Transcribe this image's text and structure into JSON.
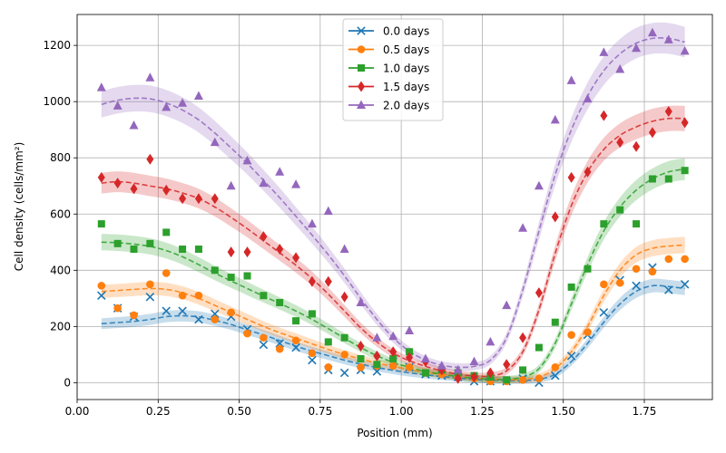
{
  "chart_data": {
    "type": "line",
    "title": "",
    "xlabel": "Position (mm)",
    "ylabel": "Cell density (cells/mm²)",
    "xlim": [
      0.0,
      1.96
    ],
    "ylim": [
      -60,
      1310
    ],
    "xticks": [
      0.0,
      0.25,
      0.5,
      0.75,
      1.0,
      1.25,
      1.5,
      1.75
    ],
    "xtick_labels": [
      "0.00",
      "0.25",
      "0.50",
      "0.75",
      "1.00",
      "1.25",
      "1.50",
      "1.75"
    ],
    "yticks": [
      0,
      200,
      400,
      600,
      800,
      1000,
      1200
    ],
    "ytick_labels": [
      "0",
      "200",
      "400",
      "600",
      "800",
      "1000",
      "1200"
    ],
    "grid": true,
    "legend_position": "top-center",
    "x": [
      0.075,
      0.125,
      0.175,
      0.225,
      0.275,
      0.325,
      0.375,
      0.425,
      0.475,
      0.525,
      0.575,
      0.625,
      0.675,
      0.725,
      0.775,
      0.825,
      0.875,
      0.925,
      0.975,
      1.025,
      1.075,
      1.125,
      1.175,
      1.225,
      1.275,
      1.325,
      1.375,
      1.425,
      1.475,
      1.525,
      1.575,
      1.625,
      1.675,
      1.725,
      1.775,
      1.825,
      1.875
    ],
    "series": [
      {
        "name": "0.0 days",
        "color": "#1f77b4",
        "marker": "x",
        "values": [
          310,
          265,
          235,
          305,
          255,
          255,
          225,
          245,
          235,
          190,
          135,
          140,
          125,
          80,
          45,
          35,
          45,
          40,
          75,
          55,
          30,
          25,
          20,
          5,
          5,
          5,
          15,
          0,
          25,
          95,
          170,
          250,
          365,
          345,
          410,
          330,
          350
        ],
        "fit": [
          210,
          214,
          218,
          225,
          235,
          238,
          234,
          222,
          207,
          188,
          170,
          150,
          130,
          112,
          96,
          80,
          66,
          54,
          44,
          35,
          28,
          22,
          17,
          12,
          9,
          8,
          8,
          12,
          30,
          75,
          140,
          215,
          280,
          325,
          345,
          342,
          335
        ]
      },
      {
        "name": "0.5 days",
        "color": "#ff7f0e",
        "marker": "o",
        "values": [
          345,
          265,
          240,
          350,
          390,
          310,
          310,
          225,
          250,
          175,
          160,
          120,
          150,
          105,
          55,
          100,
          55,
          60,
          60,
          55,
          35,
          30,
          20,
          15,
          5,
          5,
          10,
          15,
          55,
          170,
          180,
          350,
          355,
          405,
          395,
          440,
          440
        ],
        "fit": [
          325,
          328,
          332,
          335,
          332,
          320,
          300,
          275,
          250,
          225,
          200,
          178,
          158,
          138,
          118,
          100,
          84,
          70,
          58,
          47,
          37,
          29,
          22,
          16,
          12,
          10,
          12,
          20,
          50,
          110,
          200,
          310,
          400,
          455,
          478,
          486,
          490
        ]
      },
      {
        "name": "1.0 days",
        "color": "#2ca02c",
        "marker": "s",
        "values": [
          565,
          495,
          475,
          495,
          535,
          475,
          475,
          400,
          375,
          380,
          310,
          285,
          220,
          245,
          145,
          160,
          85,
          65,
          85,
          110,
          35,
          45,
          35,
          25,
          20,
          10,
          45,
          125,
          215,
          340,
          405,
          565,
          615,
          565,
          725,
          725,
          755
        ],
        "fit": [
          500,
          498,
          493,
          485,
          470,
          448,
          420,
          390,
          362,
          335,
          308,
          282,
          255,
          225,
          192,
          158,
          125,
          96,
          72,
          55,
          40,
          30,
          22,
          16,
          12,
          12,
          20,
          50,
          140,
          280,
          420,
          540,
          625,
          685,
          725,
          750,
          760
        ]
      },
      {
        "name": "1.5 days",
        "color": "#d62728",
        "marker": "d",
        "values": [
          730,
          710,
          690,
          795,
          685,
          655,
          655,
          655,
          465,
          465,
          520,
          475,
          445,
          360,
          360,
          305,
          130,
          95,
          110,
          90,
          75,
          45,
          15,
          20,
          35,
          65,
          160,
          320,
          590,
          730,
          750,
          950,
          855,
          840,
          890,
          965,
          925
        ],
        "fit": [
          710,
          715,
          710,
          700,
          690,
          675,
          655,
          625,
          588,
          548,
          505,
          462,
          418,
          370,
          315,
          255,
          195,
          145,
          105,
          78,
          58,
          42,
          30,
          24,
          24,
          42,
          110,
          260,
          460,
          630,
          750,
          830,
          880,
          910,
          930,
          940,
          940
        ]
      },
      {
        "name": "2.0 days",
        "color": "#9467bd",
        "marker": "^",
        "values": [
          1050,
          985,
          915,
          1085,
          980,
          995,
          1020,
          855,
          700,
          790,
          710,
          750,
          705,
          565,
          610,
          475,
          285,
          160,
          165,
          185,
          85,
          60,
          45,
          75,
          145,
          275,
          550,
          700,
          935,
          1075,
          1010,
          1175,
          1115,
          1190,
          1245,
          1220,
          1180
        ],
        "fit": [
          990,
          1005,
          1012,
          1010,
          995,
          970,
          935,
          888,
          835,
          780,
          720,
          658,
          592,
          525,
          455,
          380,
          300,
          225,
          160,
          112,
          80,
          62,
          55,
          58,
          80,
          160,
          330,
          540,
          740,
          900,
          1020,
          1110,
          1170,
          1208,
          1225,
          1225,
          1212
        ]
      }
    ]
  }
}
